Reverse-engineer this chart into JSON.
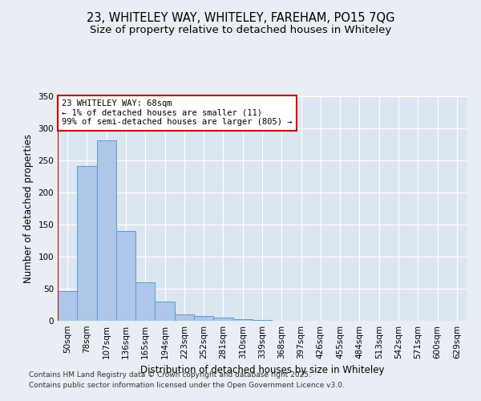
{
  "title_line1": "23, WHITELEY WAY, WHITELEY, FAREHAM, PO15 7QG",
  "title_line2": "Size of property relative to detached houses in Whiteley",
  "xlabel": "Distribution of detached houses by size in Whiteley",
  "ylabel": "Number of detached properties",
  "categories": [
    "50sqm",
    "78sqm",
    "107sqm",
    "136sqm",
    "165sqm",
    "194sqm",
    "223sqm",
    "252sqm",
    "281sqm",
    "310sqm",
    "339sqm",
    "368sqm",
    "397sqm",
    "426sqm",
    "455sqm",
    "484sqm",
    "513sqm",
    "542sqm",
    "571sqm",
    "600sqm",
    "629sqm"
  ],
  "values": [
    46,
    241,
    281,
    140,
    60,
    30,
    10,
    8,
    5,
    3,
    1,
    0,
    0,
    0,
    0,
    0,
    0,
    0,
    0,
    0,
    0
  ],
  "bar_color": "#aec6e8",
  "bar_edge_color": "#5b9bd5",
  "vline_color": "#cc0000",
  "annotation_text": "23 WHITELEY WAY: 68sqm\n← 1% of detached houses are smaller (11)\n99% of semi-detached houses are larger (805) →",
  "annotation_box_color": "#ffffff",
  "annotation_box_edge": "#cc0000",
  "ylim": [
    0,
    350
  ],
  "yticks": [
    0,
    50,
    100,
    150,
    200,
    250,
    300,
    350
  ],
  "bg_color": "#e8eef4",
  "plot_bg_color": "#dce6f0",
  "footer_line1": "Contains HM Land Registry data © Crown copyright and database right 2025.",
  "footer_line2": "Contains public sector information licensed under the Open Government Licence v3.0.",
  "title_fontsize": 10.5,
  "subtitle_fontsize": 9.5,
  "axis_label_fontsize": 8.5,
  "tick_fontsize": 7.5,
  "annotation_fontsize": 7.5,
  "footer_fontsize": 6.5
}
